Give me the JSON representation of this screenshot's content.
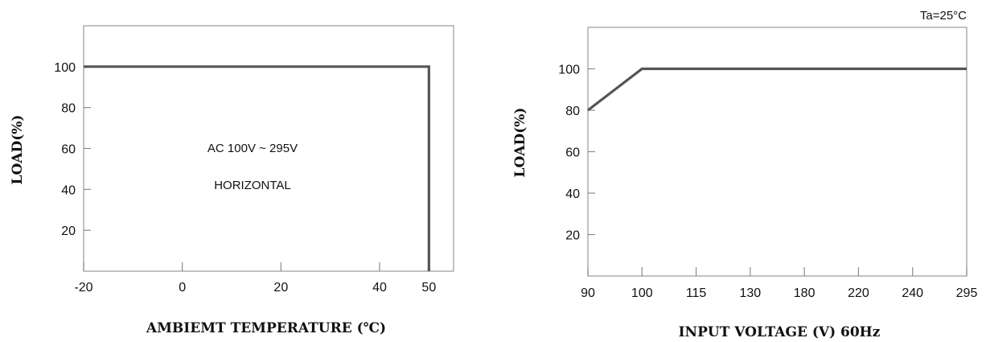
{
  "chart_data": [
    {
      "type": "line",
      "title": "",
      "xlabel": "AMBIEMT TEMPERATURE (℃)",
      "ylabel": "LOAD(%)",
      "xlim": [
        -20,
        55
      ],
      "ylim": [
        0,
        120
      ],
      "x_ticks": [
        -20,
        0,
        20,
        40,
        50
      ],
      "x_tick_labels": [
        "-20",
        "0",
        "20",
        "40",
        "50"
      ],
      "y_ticks": [
        20,
        40,
        60,
        80,
        100
      ],
      "y_tick_labels": [
        "20",
        "40",
        "60",
        "80",
        "100"
      ],
      "series": [
        {
          "values": [
            {
              "x": -20,
              "y": 100
            },
            {
              "x": 50,
              "y": 100
            },
            {
              "x": 50,
              "y": 0
            }
          ]
        }
      ],
      "annotations": [
        "AC 100V ~ 295V",
        "HORIZONTAL"
      ],
      "grid": false,
      "colors": {
        "line": "#555555",
        "frame": "#9a9a9a"
      }
    },
    {
      "type": "line",
      "title": "",
      "xlabel": "INPUT VOLTAGE (V) 60Hz",
      "ylabel": "LOAD(%)",
      "x_scale": "categorical",
      "categories": [
        "90",
        "100",
        "115",
        "130",
        "180",
        "220",
        "240",
        "295"
      ],
      "ylim": [
        0,
        120
      ],
      "y_ticks": [
        20,
        40,
        60,
        80,
        100
      ],
      "y_tick_labels": [
        "20",
        "40",
        "60",
        "80",
        "100"
      ],
      "series": [
        {
          "values": [
            80,
            100,
            100,
            100,
            100,
            100,
            100,
            100
          ]
        }
      ],
      "annotations": [
        "Ta=25°C"
      ],
      "grid": false,
      "colors": {
        "line": "#555555",
        "frame": "#9a9a9a"
      }
    }
  ]
}
